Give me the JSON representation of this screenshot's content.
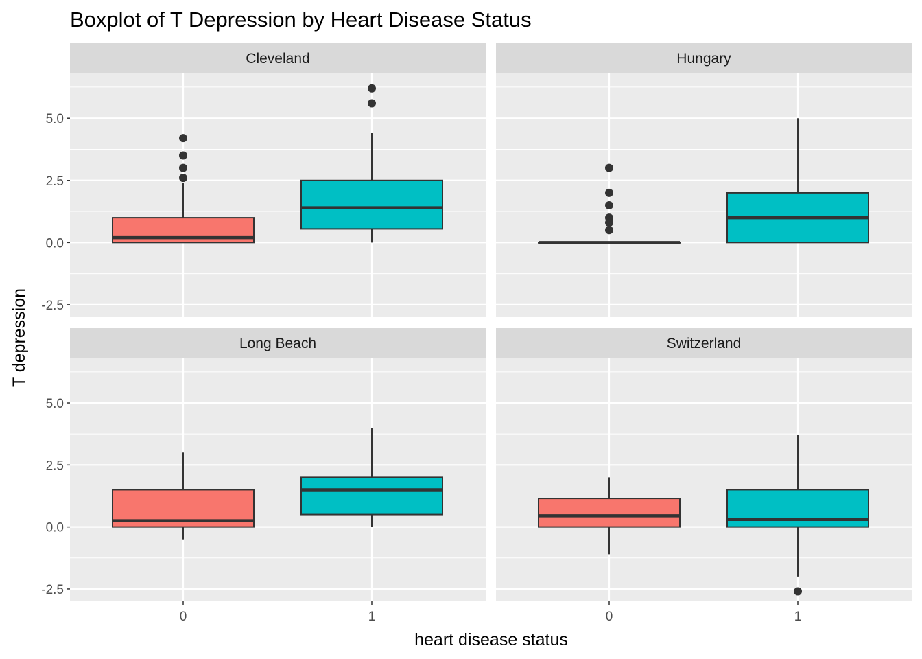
{
  "chart_data": {
    "type": "boxplot",
    "title": "Boxplot of T Depression by Heart Disease Status",
    "xlabel": "heart disease status",
    "ylabel": "T depression",
    "categories": [
      "0",
      "1"
    ],
    "ylim": [
      -3.0,
      6.8
    ],
    "yticks": [
      -2.5,
      0.0,
      2.5,
      5.0
    ],
    "ytick_labels": [
      "-2.5",
      "0.0",
      "2.5",
      "5.0"
    ],
    "grid": true,
    "facet_layout": "2x2",
    "colors": {
      "0": "#F8766D",
      "1": "#00BFC4",
      "panel_bg": "#EBEBEB",
      "strip_bg": "#D9D9D9",
      "grid": "#FFFFFF"
    },
    "facets": [
      {
        "name": "Cleveland",
        "boxes": [
          {
            "category": "0",
            "whisker_low": 0.0,
            "q1": 0.0,
            "median": 0.2,
            "q3": 1.0,
            "whisker_high": 2.4,
            "outliers": [
              2.6,
              3.0,
              3.5,
              4.2
            ]
          },
          {
            "category": "1",
            "whisker_low": 0.0,
            "q1": 0.55,
            "median": 1.4,
            "q3": 2.5,
            "whisker_high": 4.4,
            "outliers": [
              5.6,
              6.2
            ]
          }
        ]
      },
      {
        "name": "Hungary",
        "boxes": [
          {
            "category": "0",
            "whisker_low": 0.0,
            "q1": 0.0,
            "median": 0.0,
            "q3": 0.0,
            "whisker_high": 0.0,
            "outliers": [
              0.5,
              0.8,
              1.0,
              1.5,
              2.0,
              3.0
            ]
          },
          {
            "category": "1",
            "whisker_low": 0.0,
            "q1": 0.0,
            "median": 1.0,
            "q3": 2.0,
            "whisker_high": 5.0,
            "outliers": []
          }
        ]
      },
      {
        "name": "Long Beach",
        "boxes": [
          {
            "category": "0",
            "whisker_low": -0.5,
            "q1": 0.0,
            "median": 0.25,
            "q3": 1.5,
            "whisker_high": 3.0,
            "outliers": []
          },
          {
            "category": "1",
            "whisker_low": 0.0,
            "q1": 0.5,
            "median": 1.5,
            "q3": 2.0,
            "whisker_high": 4.0,
            "outliers": []
          }
        ]
      },
      {
        "name": "Switzerland",
        "boxes": [
          {
            "category": "0",
            "whisker_low": -1.1,
            "q1": 0.0,
            "median": 0.45,
            "q3": 1.15,
            "whisker_high": 2.0,
            "outliers": []
          },
          {
            "category": "1",
            "whisker_low": -2.0,
            "q1": 0.0,
            "median": 0.3,
            "q3": 1.5,
            "whisker_high": 3.7,
            "outliers": [
              -2.6
            ]
          }
        ]
      }
    ]
  }
}
